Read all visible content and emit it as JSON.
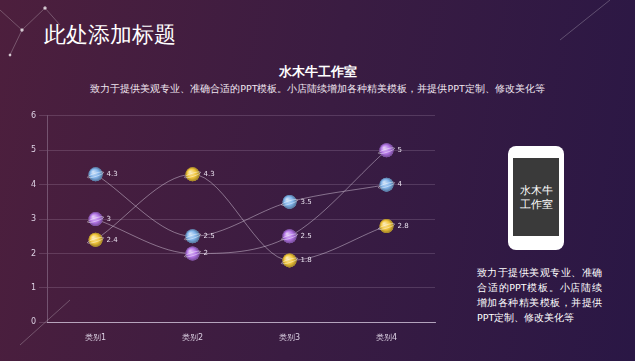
{
  "header": {
    "title": "此处添加标题"
  },
  "chart_data": {
    "type": "line",
    "title": "水木牛工作室",
    "subtitle": "致力于提供美观专业、准确合适的PPT模板。小店陆续增加各种精美模板，并提供PPT定制、修改美化等",
    "categories": [
      "类别1",
      "类别2",
      "类别3",
      "类别4"
    ],
    "series": [
      {
        "color": "#7fb2ea",
        "values": [
          4.3,
          2.5,
          3.5,
          4
        ]
      },
      {
        "color": "#f2c53a",
        "values": [
          2.4,
          4.3,
          1.8,
          2.8
        ]
      },
      {
        "color": "#b374e6",
        "values": [
          3,
          2,
          2.5,
          5
        ]
      }
    ],
    "ylim": [
      0,
      6
    ],
    "yticks": [
      0,
      1,
      2,
      3,
      4,
      5,
      6
    ],
    "grid": true,
    "data_labels": true,
    "marker": "circle",
    "line_style": "smooth"
  },
  "side": {
    "phone_text": [
      "水木牛",
      "工作室"
    ],
    "description": "致力于提供美观专业、准确合适的PPT模板。小店陆续增加各种精美模板，并提供PPT定制、修改美化等"
  }
}
